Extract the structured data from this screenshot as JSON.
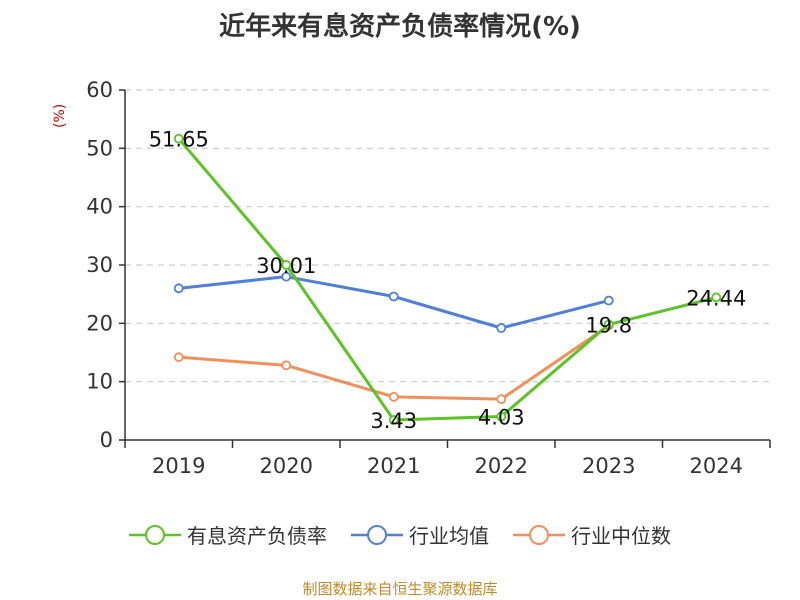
{
  "title": "近年来有息资产负债率情况(%)",
  "source": "制图数据来自恒生聚源数据库",
  "chart_data": {
    "type": "line",
    "title": "近年来有息资产负债率情况(%)",
    "xlabel": "",
    "ylabel": "(%)",
    "categories": [
      "2019",
      "2020",
      "2021",
      "2022",
      "2023",
      "2024"
    ],
    "ylim": [
      0,
      60
    ],
    "yticks": [
      0,
      10,
      20,
      30,
      40,
      50,
      60
    ],
    "grid": true,
    "legend_position": "bottom",
    "series": [
      {
        "name": "有息资产负债率",
        "color": "#5cc226",
        "values": [
          51.65,
          30.01,
          3.43,
          4.03,
          19.8,
          24.44
        ],
        "labels": [
          "51.65",
          "30.01",
          "3.43",
          "4.03",
          "19.8",
          "24.44"
        ]
      },
      {
        "name": "行业均值",
        "color": "#4f7fd9",
        "values": [
          26.0,
          28.0,
          24.6,
          19.2,
          23.9,
          null
        ]
      },
      {
        "name": "行业中位数",
        "color": "#f28e5a",
        "values": [
          14.2,
          12.8,
          7.4,
          7.0,
          19.6,
          null
        ]
      }
    ]
  }
}
